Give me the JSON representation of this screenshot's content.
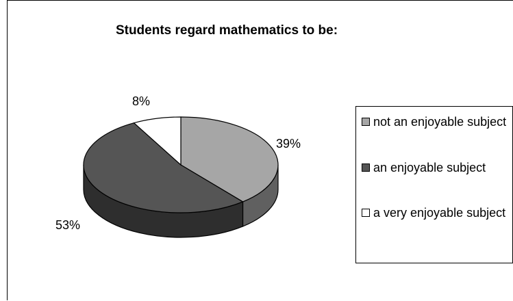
{
  "chart_data": {
    "type": "pie",
    "title": "Students regard mathematics to be:",
    "categories": [
      "not an enjoyable subject",
      "an enjoyable subject",
      "a very enjoyable subject"
    ],
    "values": [
      39,
      53,
      8
    ],
    "value_labels": [
      "39%",
      "53%",
      "8%"
    ],
    "colors": [
      "#a6a6a6",
      "#555555",
      "#ffffff"
    ],
    "side_colors": [
      "#606060",
      "#2e2e2e",
      "#b0b0b0"
    ],
    "style": "3d",
    "legend_position": "right"
  }
}
